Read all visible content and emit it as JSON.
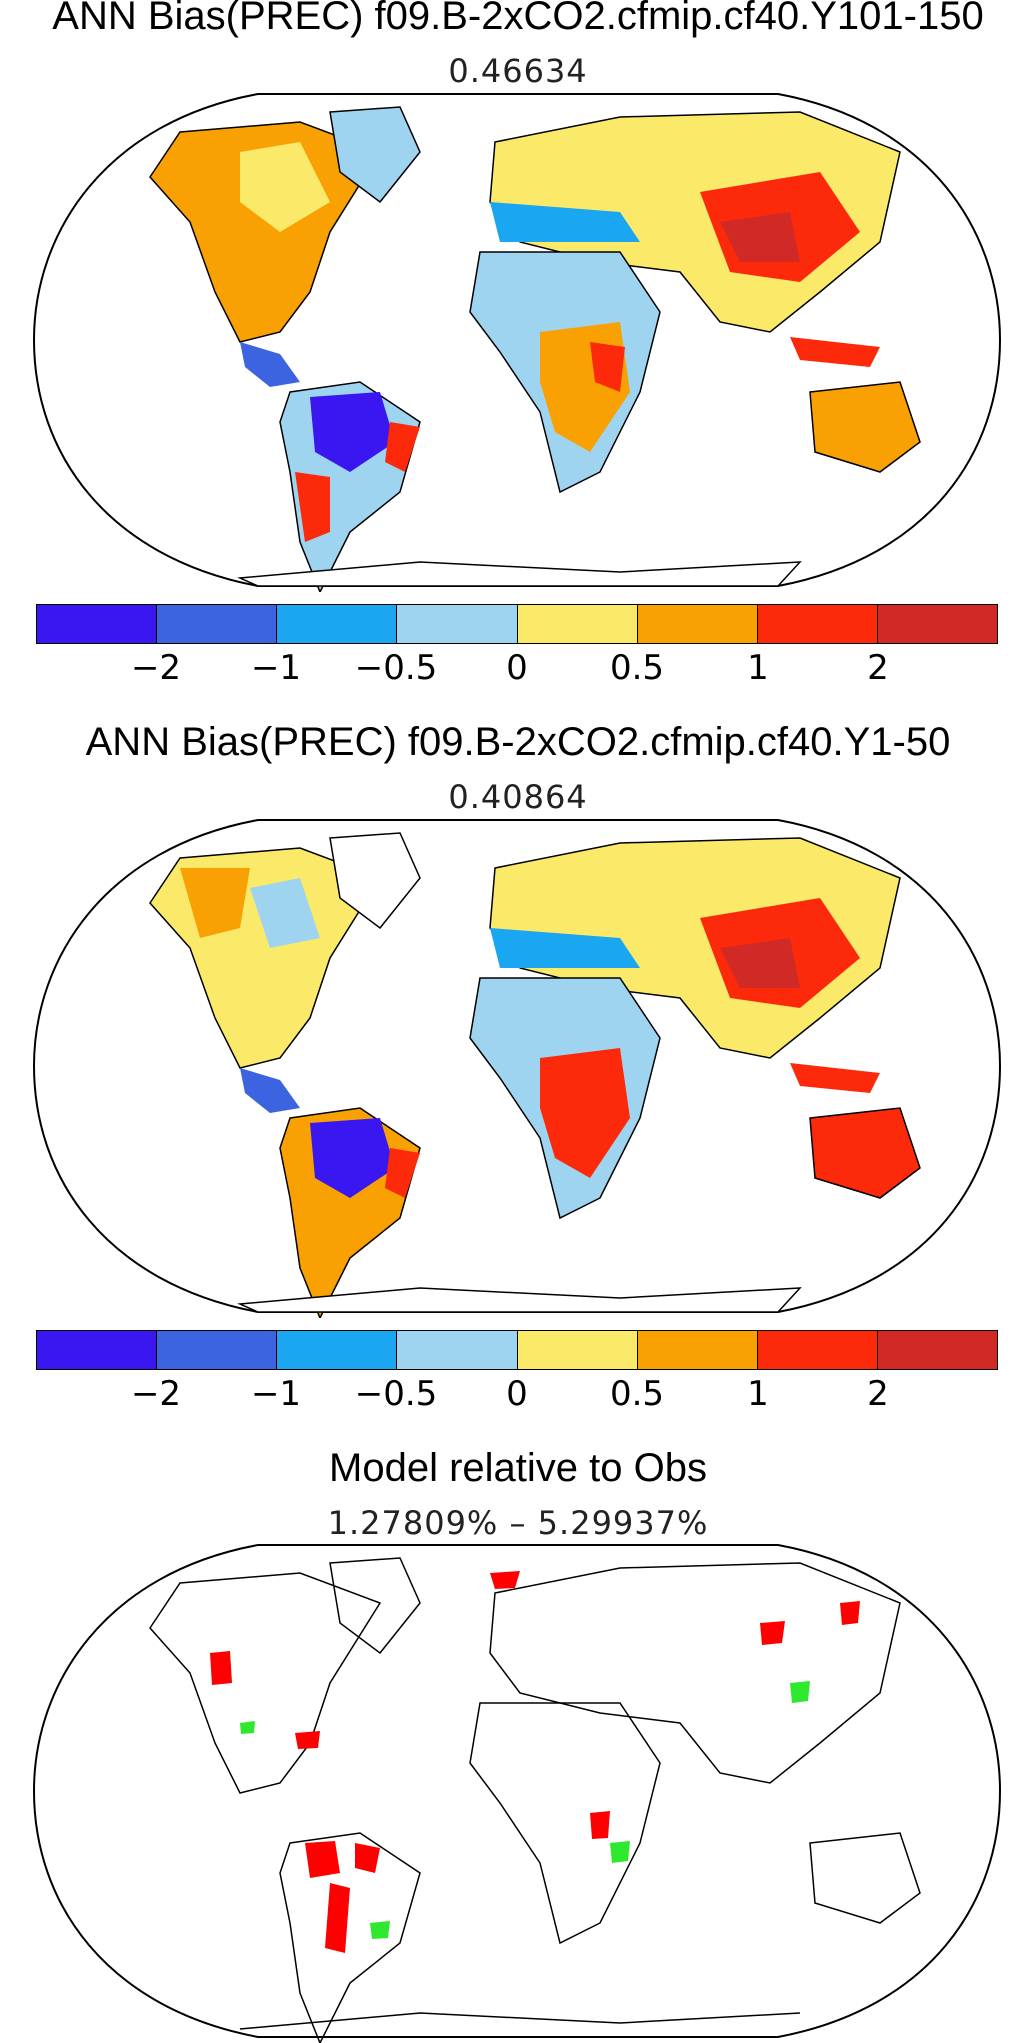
{
  "panels": [
    {
      "title": "ANN Bias(PREC) f09.B-2xCO2.cfmip.cf40.Y101-150",
      "subtitle": "0.46634"
    },
    {
      "title": "ANN Bias(PREC) f09.B-2xCO2.cfmip.cf40.Y1-50",
      "subtitle": "0.40864"
    },
    {
      "title": "Model relative to Obs",
      "subtitle": "1.27809% – 5.29937%"
    }
  ],
  "colorbar": {
    "colors": [
      "#3a17f0",
      "#3d64e0",
      "#1aa6f0",
      "#9fd4f0",
      "#fbe96a",
      "#f9a103",
      "#fc2a0a",
      "#d12a26"
    ],
    "tick_labels": [
      "−2",
      "−1",
      "−0.5",
      "0",
      "0.5",
      "1",
      "2"
    ]
  },
  "significance_colors": {
    "worse": "#ff0000",
    "better": "#2ee82e"
  }
}
